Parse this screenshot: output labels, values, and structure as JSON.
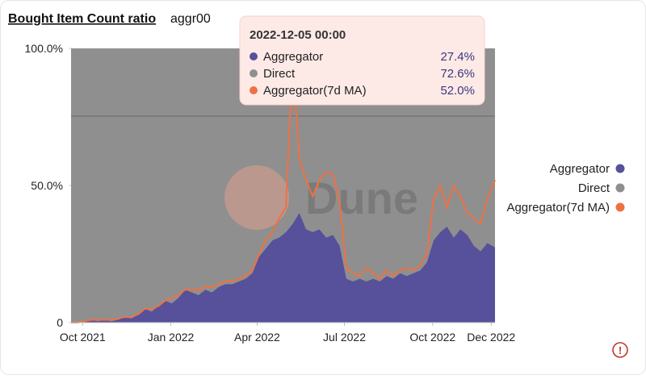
{
  "chart_data": {
    "type": "stacked_area_line",
    "title": "Bought Item Count ratio",
    "subtitle": "aggr00",
    "watermark": "Dune",
    "x": [
      "2021-09-19",
      "2021-09-26",
      "2021-10-03",
      "2021-10-10",
      "2021-10-17",
      "2021-10-24",
      "2021-10-31",
      "2021-11-07",
      "2021-11-14",
      "2021-11-21",
      "2021-11-28",
      "2021-12-05",
      "2021-12-12",
      "2021-12-19",
      "2021-12-26",
      "2022-01-02",
      "2022-01-09",
      "2022-01-16",
      "2022-01-23",
      "2022-01-30",
      "2022-02-06",
      "2022-02-13",
      "2022-02-20",
      "2022-02-27",
      "2022-03-06",
      "2022-03-13",
      "2022-03-20",
      "2022-03-27",
      "2022-04-03",
      "2022-04-10",
      "2022-04-17",
      "2022-04-24",
      "2022-05-01",
      "2022-05-08",
      "2022-05-15",
      "2022-05-22",
      "2022-05-29",
      "2022-06-05",
      "2022-06-12",
      "2022-06-19",
      "2022-06-26",
      "2022-07-03",
      "2022-07-10",
      "2022-07-17",
      "2022-07-24",
      "2022-07-31",
      "2022-08-07",
      "2022-08-14",
      "2022-08-21",
      "2022-08-28",
      "2022-09-04",
      "2022-09-11",
      "2022-09-18",
      "2022-09-25",
      "2022-10-02",
      "2022-10-09",
      "2022-10-16",
      "2022-10-23",
      "2022-10-30",
      "2022-11-06",
      "2022-11-13",
      "2022-11-20",
      "2022-11-27",
      "2022-12-05"
    ],
    "series": [
      {
        "name": "Aggregator",
        "color": "#56519a",
        "stack": true,
        "values": [
          0,
          0,
          0.5,
          1,
          0.5,
          1,
          0.5,
          1,
          2,
          1.5,
          3,
          5,
          4,
          6,
          8,
          7,
          9,
          12,
          11,
          10,
          12,
          11,
          13,
          14,
          14,
          15,
          16,
          18,
          24,
          27,
          30,
          31,
          33,
          36,
          40,
          34,
          33,
          34,
          31,
          32,
          28,
          16,
          15,
          16,
          15,
          16,
          15,
          17,
          16,
          18,
          17,
          18,
          19,
          22,
          30,
          33,
          35,
          31,
          34,
          32,
          28,
          26,
          29,
          27.4
        ]
      },
      {
        "name": "Direct",
        "color": "#8f8f8f",
        "stack": true,
        "values": [
          100,
          100,
          99.5,
          99,
          99.5,
          99,
          99.5,
          99,
          98,
          98.5,
          97,
          95,
          96,
          94,
          92,
          93,
          91,
          88,
          89,
          90,
          88,
          89,
          87,
          86,
          86,
          85,
          84,
          82,
          76,
          73,
          70,
          69,
          67,
          64,
          60,
          66,
          67,
          66,
          69,
          68,
          72,
          84,
          85,
          84,
          85,
          84,
          85,
          83,
          84,
          82,
          83,
          82,
          81,
          78,
          70,
          67,
          65,
          69,
          66,
          68,
          72,
          74,
          71,
          72.6
        ]
      },
      {
        "name": "Aggregator(7d MA)",
        "color": "#ef7143",
        "stack": false,
        "values": [
          0,
          0,
          0.5,
          1,
          1,
          1,
          1,
          1.5,
          2,
          2,
          3,
          5,
          5,
          6,
          8,
          9,
          10,
          12,
          12,
          12,
          13,
          13,
          14,
          15,
          15,
          16,
          17,
          19,
          25,
          30,
          33,
          38,
          42,
          98,
          60,
          52,
          46,
          52,
          55,
          54,
          44,
          20,
          18,
          17,
          20,
          18,
          16,
          19,
          17,
          19,
          20,
          19,
          21,
          25,
          45,
          50,
          42,
          50,
          46,
          40,
          38,
          36,
          45,
          52.0
        ]
      }
    ],
    "xlim": [
      "2021-09-19",
      "2022-12-05"
    ],
    "xticks": [
      {
        "value": "2021-10-01",
        "label": "Oct 2021"
      },
      {
        "value": "2022-01-01",
        "label": "Jan 2022"
      },
      {
        "value": "2022-04-01",
        "label": "Apr 2022"
      },
      {
        "value": "2022-07-01",
        "label": "Jul 2022"
      },
      {
        "value": "2022-10-01",
        "label": "Oct 2022"
      },
      {
        "value": "2022-12-01",
        "label": "Dec 2022"
      }
    ],
    "ylim": [
      0,
      100
    ],
    "yticks": [
      0,
      {
        "value": 50,
        "label": "50.0%"
      },
      {
        "value": 100,
        "label": "100.0%"
      }
    ],
    "legend": "right",
    "tooltip": {
      "title": "2022-12-05 00:00",
      "labels": [
        "27.4%",
        "72.6%",
        "52.0%"
      ]
    }
  }
}
